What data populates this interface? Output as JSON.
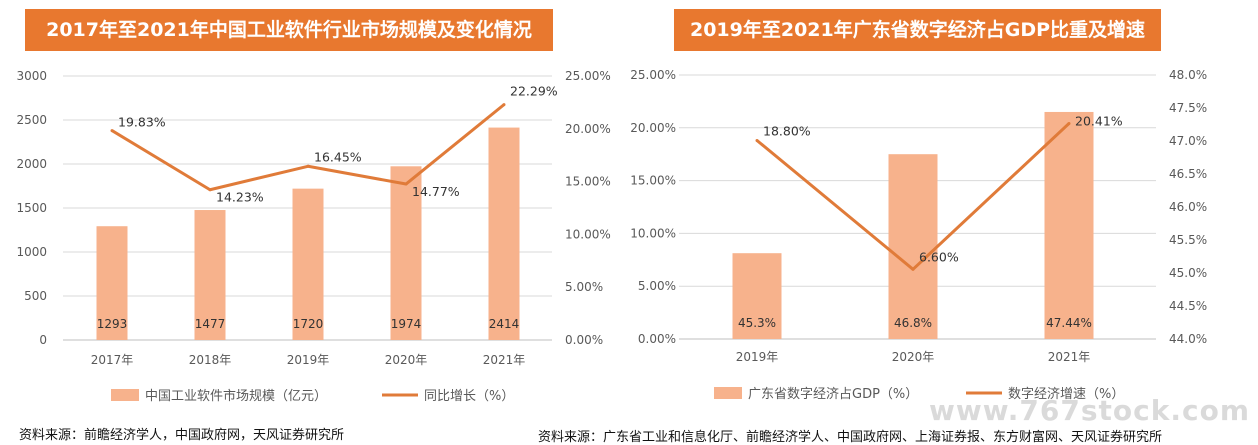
{
  "colors": {
    "title_bg": "#e8782f",
    "bar": "#f7b28c",
    "line": "#e07b39",
    "grid": "#d9d9d9",
    "axis_text": "#595959"
  },
  "chart_data": [
    {
      "type": "bar",
      "title": "2017年至2021年中国工业软件行业市场规模及变化情况",
      "categories": [
        "2017年",
        "2018年",
        "2019年",
        "2020年",
        "2021年"
      ],
      "series": [
        {
          "name": "中国工业软件市场规模（亿元）",
          "type": "bar",
          "axis": "left",
          "values": [
            1293,
            1477,
            1720,
            1974,
            2414
          ],
          "labels": [
            "1293",
            "1477",
            "1720",
            "1974",
            "2414"
          ]
        },
        {
          "name": "同比增长（%）",
          "type": "line",
          "axis": "right",
          "values": [
            19.83,
            14.23,
            16.45,
            14.77,
            22.29
          ],
          "labels": [
            "19.83%",
            "14.23%",
            "16.45%",
            "14.77%",
            "22.29%"
          ]
        }
      ],
      "y_left": {
        "min": 0,
        "max": 3000,
        "ticks": [
          "0",
          "500",
          "1000",
          "1500",
          "2000",
          "2500",
          "3000"
        ]
      },
      "y_right": {
        "min": 0,
        "max": 25,
        "ticks": [
          "0.00%",
          "5.00%",
          "10.00%",
          "15.00%",
          "20.00%",
          "25.00%"
        ]
      },
      "grid": true,
      "legend_position": "bottom"
    },
    {
      "type": "bar",
      "title": "2019年至2021年广东省数字经济占GDP比重及增速",
      "categories": [
        "2019年",
        "2020年",
        "2021年"
      ],
      "series": [
        {
          "name": "广东省数字经济占GDP（%）",
          "type": "bar",
          "axis": "right",
          "values": [
            45.3,
            46.8,
            47.44
          ],
          "labels": [
            "45.3%",
            "46.8%",
            "47.44%"
          ]
        },
        {
          "name": "数字经济增速（%）",
          "type": "line",
          "axis": "left",
          "values": [
            18.8,
            6.6,
            20.41
          ],
          "labels": [
            "18.80%",
            "6.60%",
            "20.41%"
          ]
        }
      ],
      "y_left": {
        "min": 0,
        "max": 25,
        "ticks": [
          "0.00%",
          "5.00%",
          "10.00%",
          "15.00%",
          "20.00%",
          "25.00%"
        ]
      },
      "y_right": {
        "min": 44,
        "max": 48,
        "ticks": [
          "44.0%",
          "44.5%",
          "45.0%",
          "45.5%",
          "46.0%",
          "46.5%",
          "47.0%",
          "47.5%",
          "48.0%"
        ]
      },
      "grid": true,
      "legend_position": "bottom"
    }
  ],
  "sources": {
    "left": "资料来源：前瞻经济学人，中国政府网，天风证券研究所",
    "right": "资料来源：广东省工业和信息化厅、前瞻经济学人、中国政府网、上海证券报、东方财富网、天风证券研究所"
  },
  "watermark": "www.767stock.com"
}
